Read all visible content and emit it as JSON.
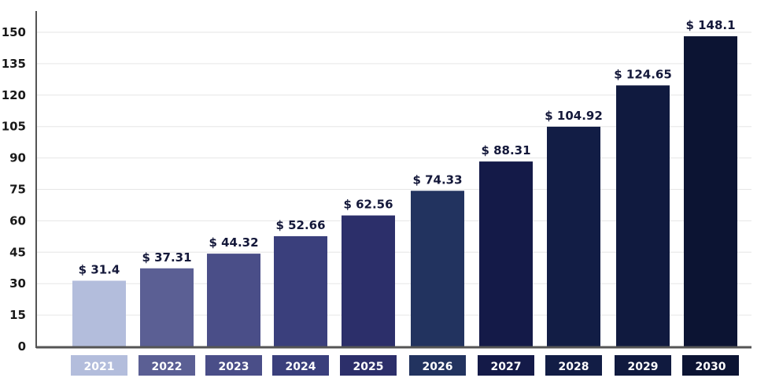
{
  "chart_data": {
    "type": "bar",
    "title": "",
    "xlabel": "",
    "ylabel": "",
    "categories": [
      "2021",
      "2022",
      "2023",
      "2024",
      "2025",
      "2026",
      "2027",
      "2028",
      "2029",
      "2030"
    ],
    "values": [
      31.4,
      37.31,
      44.32,
      52.66,
      62.56,
      74.33,
      88.31,
      104.92,
      124.65,
      148.1
    ],
    "value_labels": [
      "$ 31.4",
      "$ 37.31",
      "$ 44.32",
      "$ 52.66",
      "$ 62.56",
      "$ 74.33",
      "$ 88.31",
      "$ 104.92",
      "$ 124.65",
      "$ 148.1"
    ],
    "ylim": [
      0,
      150
    ],
    "yticks": [
      "0",
      "15",
      "30",
      "45",
      "60",
      "75",
      "90",
      "105",
      "120",
      "135",
      "150"
    ],
    "grid": true,
    "bar_colors": [
      "#b3bddc",
      "#5b5f94",
      "#4a4e88",
      "#3a3f7c",
      "#2c2f6a",
      "#22335f",
      "#141a48",
      "#121d45",
      "#101a3f",
      "#0c1433"
    ],
    "axis_color": "#555555",
    "grid_color": "#e6e6e6"
  }
}
